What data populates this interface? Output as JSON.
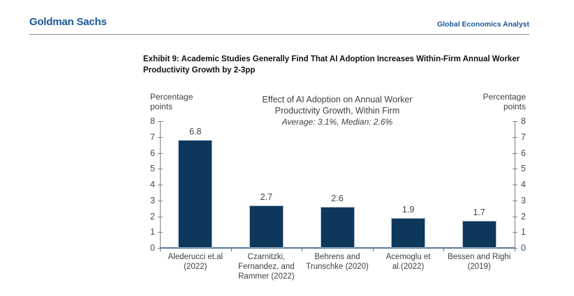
{
  "colors": {
    "brand_blue": "#1a5796",
    "bar_fill": "#0e375c",
    "bar_border": "#a7bace",
    "axis_gray": "#808080",
    "axis_blue": "#54789e",
    "text_dark": "#404040",
    "tick_text": "#3e4c63"
  },
  "header": {
    "brand": "Goldman Sachs",
    "report": "Global Economics Analyst"
  },
  "exhibit": {
    "title_lines": [
      "Exhibit 9: Academic Studies Generally Find That AI Adoption Increases Within-Firm Annual Worker",
      "Productivity Growth by 2-3pp"
    ]
  },
  "chart_data": {
    "type": "bar",
    "title_lines": [
      "Effect of AI Adoption on Annual Worker",
      "Productivity Growth, Within Firm"
    ],
    "subtitle": "Average: 3.1%, Median: 2.6%",
    "left_axis_label_lines": [
      "Percentage",
      "points"
    ],
    "right_axis_label_lines": [
      "Percentage",
      "points"
    ],
    "categories": [
      [
        "Alederucci et.al",
        "(2022)"
      ],
      [
        "Czarnitzki,",
        "Fernandez, and",
        "Rammer (2022)"
      ],
      [
        "Behrens and",
        "Trunschke (2020)"
      ],
      [
        "Acemoglu et",
        "al.(2022)"
      ],
      [
        "Bessen and Righi",
        "(2019)"
      ]
    ],
    "values": [
      6.8,
      2.7,
      2.6,
      1.9,
      1.7
    ],
    "value_labels": [
      "6.8",
      "2.7",
      "2.6",
      "1.9",
      "1.7"
    ],
    "ylim": [
      0,
      8
    ],
    "ytick_step": 1,
    "yticks": [
      0,
      1,
      2,
      3,
      4,
      5,
      6,
      7,
      8
    ],
    "grid": false,
    "legend": null,
    "dual_axis": true
  }
}
